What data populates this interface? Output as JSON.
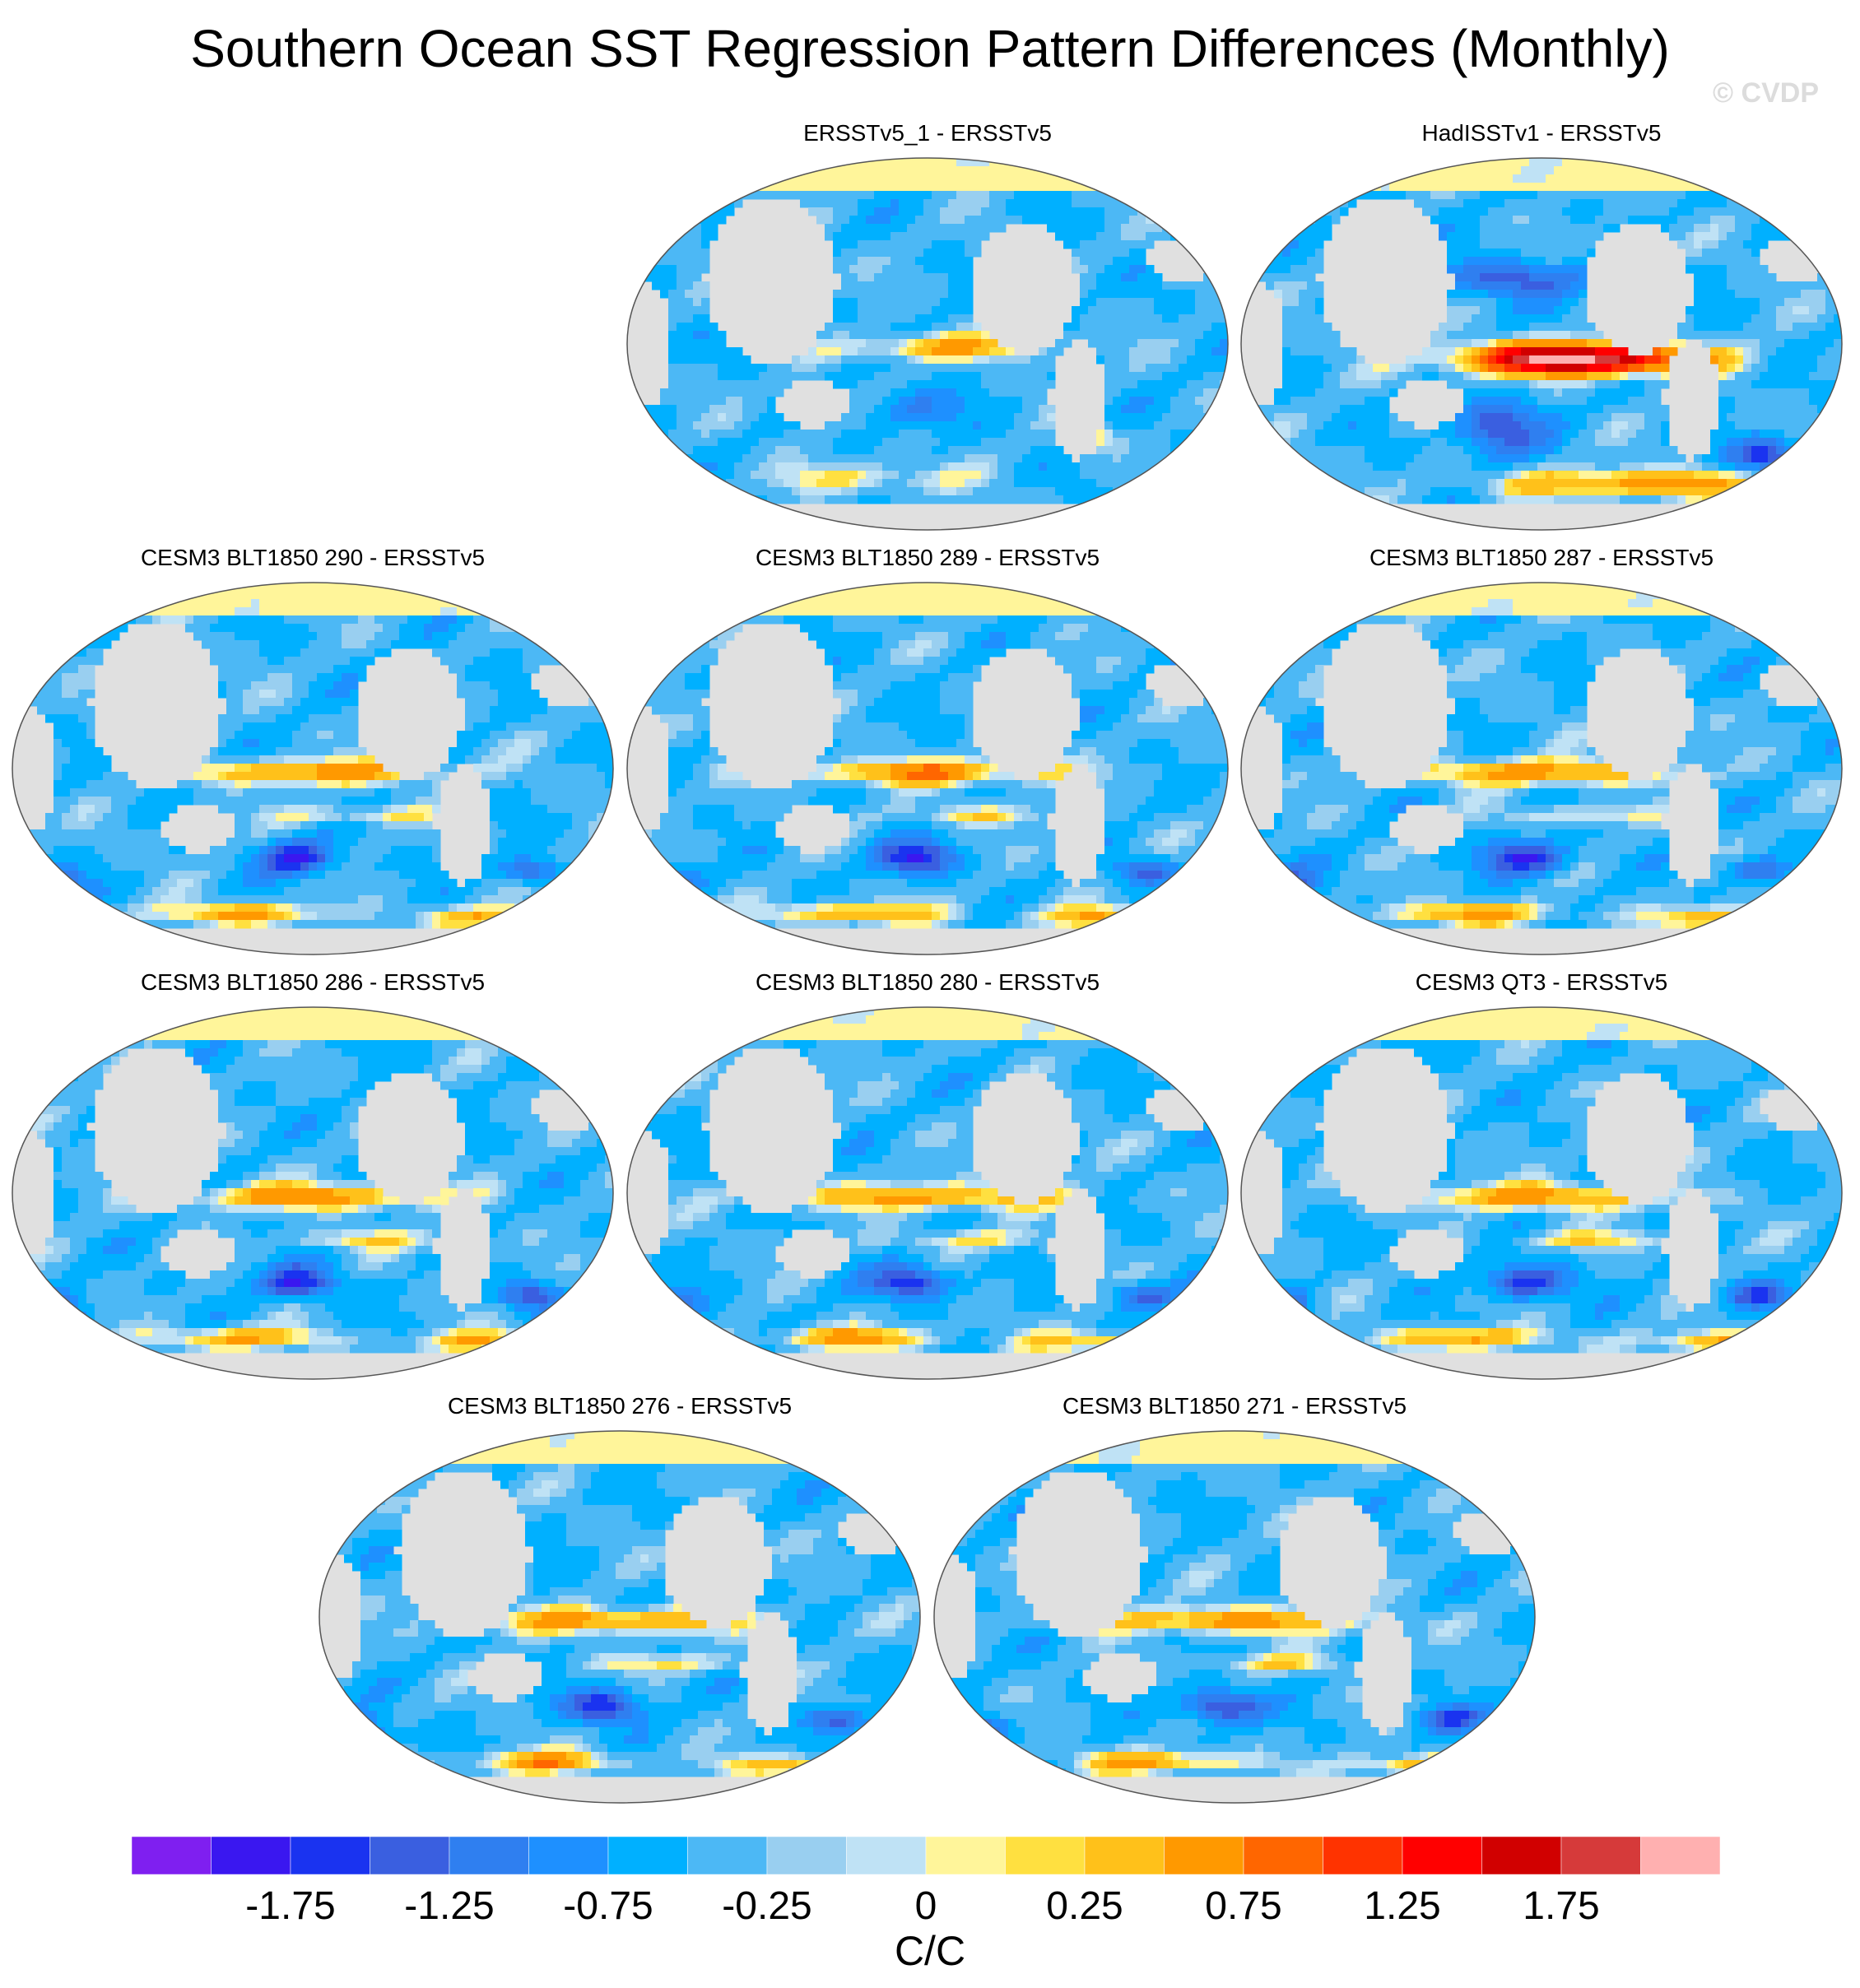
{
  "chart_data": {
    "type": "heatmap",
    "title": "Southern Ocean SST Regression Pattern Differences (Monthly)",
    "watermark": "© CVDP",
    "units": "C/C",
    "panels": [
      {
        "title": "ERSSTv5_1 - ERSSTv5",
        "pattern": "weak"
      },
      {
        "title": "HadISSTv1 - ERSSTv5",
        "pattern": "strong_enso"
      },
      {
        "title": "CESM3 BLT1850 290 - ERSSTv5",
        "pattern": "model"
      },
      {
        "title": "CESM3 BLT1850 289 - ERSSTv5",
        "pattern": "model"
      },
      {
        "title": "CESM3 BLT1850 287 - ERSSTv5",
        "pattern": "model"
      },
      {
        "title": "CESM3 BLT1850 286 - ERSSTv5",
        "pattern": "model"
      },
      {
        "title": "CESM3 BLT1850 280 - ERSSTv5",
        "pattern": "model"
      },
      {
        "title": "CESM3 QT3 - ERSSTv5",
        "pattern": "model"
      },
      {
        "title": "CESM3 BLT1850 276 - ERSSTv5",
        "pattern": "model"
      },
      {
        "title": "CESM3 BLT1850 271 - ERSSTv5",
        "pattern": "model"
      }
    ],
    "colorbar": {
      "levels": [
        -2.25,
        -2.0,
        -1.75,
        -1.5,
        -1.25,
        -1.0,
        -0.75,
        -0.5,
        -0.25,
        -0.125,
        0,
        0.125,
        0.25,
        0.5,
        0.75,
        1.0,
        1.25,
        1.5,
        1.75,
        2.0,
        2.25
      ],
      "colors": [
        "#7f1ff0",
        "#3a17f0",
        "#1a33f0",
        "#3a5fe0",
        "#2f7ff0",
        "#1e90ff",
        "#00b0ff",
        "#4cb8f5",
        "#99cff0",
        "#bfe2f5",
        "#fff59a",
        "#ffe040",
        "#ffc11a",
        "#ff9900",
        "#ff6600",
        "#ff3300",
        "#ff0000",
        "#d10000",
        "#d63a3a",
        "#ffb0b0"
      ],
      "tick_labels": [
        "-1.75",
        "-1.25",
        "-0.75",
        "-0.25",
        "0",
        "0.25",
        "0.75",
        "1.25",
        "1.75"
      ],
      "tick_values": [
        -1.75,
        -1.25,
        -0.75,
        -0.25,
        0,
        0.25,
        0.75,
        1.25,
        1.75
      ]
    },
    "land_color": "#e0e0e0"
  }
}
